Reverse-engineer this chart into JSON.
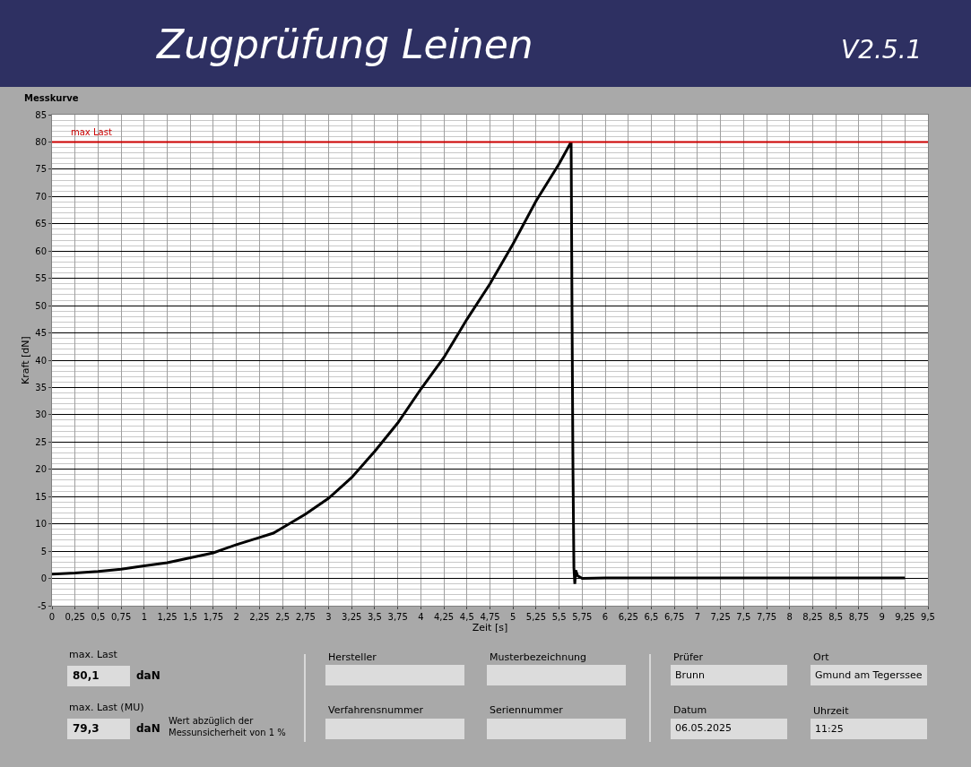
{
  "chart_data": {
    "type": "line",
    "title": "Zugprüfung Leinen",
    "subtitle": "Messkurve",
    "xlabel": "Zeit [s]",
    "ylabel": "Kraft [dN]",
    "x": [
      0,
      0.25,
      0.5,
      0.75,
      1,
      1.25,
      1.5,
      1.75,
      2,
      2.25,
      2.4,
      2.5,
      2.75,
      3,
      3.25,
      3.5,
      3.75,
      4,
      4.25,
      4.5,
      4.75,
      5,
      5.25,
      5.5,
      5.63,
      5.64,
      5.65,
      5.66,
      5.67,
      5.68,
      5.7,
      5.75,
      6,
      6.5,
      7,
      7.5,
      8,
      8.5,
      9,
      9.25
    ],
    "series": [
      {
        "color": "#000000",
        "values": [
          0.8,
          1.0,
          1.3,
          1.7,
          2.3,
          2.9,
          3.8,
          4.7,
          6.2,
          7.5,
          8.3,
          9.3,
          11.8,
          14.7,
          18.5,
          23.3,
          28.5,
          34.7,
          40.5,
          47.5,
          54,
          61.3,
          69.2,
          76,
          80,
          48,
          20,
          2,
          -1,
          1.5,
          0.5,
          0,
          0.1,
          0.1,
          0.1,
          0.1,
          0.1,
          0.1,
          0.1,
          0.1
        ]
      }
    ],
    "xlim": [
      0,
      9.5
    ],
    "xticks": [
      0,
      {
        "value": 0.25,
        "label": "0,25"
      },
      {
        "value": 0.5,
        "label": "0,5"
      },
      {
        "value": 0.75,
        "label": "0,75"
      },
      1,
      {
        "value": 1.25,
        "label": "1,25"
      },
      {
        "value": 1.5,
        "label": "1,5"
      },
      {
        "value": 1.75,
        "label": "1,75"
      },
      2,
      {
        "value": 2.25,
        "label": "2,25"
      },
      {
        "value": 2.5,
        "label": "2,5"
      },
      {
        "value": 2.75,
        "label": "2,75"
      },
      3,
      {
        "value": 3.25,
        "label": "3,25"
      },
      {
        "value": 3.5,
        "label": "3,5"
      },
      {
        "value": 3.75,
        "label": "3,75"
      },
      4,
      {
        "value": 4.25,
        "label": "4,25"
      },
      {
        "value": 4.5,
        "label": "4,5"
      },
      {
        "value": 4.75,
        "label": "4,75"
      },
      5,
      {
        "value": 5.25,
        "label": "5,25"
      },
      {
        "value": 5.5,
        "label": "5,5"
      },
      {
        "value": 5.75,
        "label": "5,75"
      },
      6,
      {
        "value": 6.25,
        "label": "6,25"
      },
      {
        "value": 6.5,
        "label": "6,5"
      },
      {
        "value": 6.75,
        "label": "6,75"
      },
      7,
      {
        "value": 7.25,
        "label": "7,25"
      },
      {
        "value": 7.5,
        "label": "7,5"
      },
      {
        "value": 7.75,
        "label": "7,75"
      },
      8,
      {
        "value": 8.25,
        "label": "8,25"
      },
      {
        "value": 8.5,
        "label": "8,5"
      },
      {
        "value": 8.75,
        "label": "8,75"
      },
      9,
      {
        "value": 9.25,
        "label": "9,25"
      },
      {
        "value": 9.5,
        "label": "9,5"
      }
    ],
    "ylim": [
      -5,
      85
    ],
    "yticks": [
      -5,
      0,
      5,
      10,
      15,
      20,
      25,
      30,
      35,
      40,
      45,
      50,
      55,
      60,
      65,
      70,
      75,
      80,
      85
    ],
    "grid": true,
    "marker": "none",
    "line_style": "solid",
    "ref_lines": [
      {
        "axis": "y",
        "value": 80,
        "label": "max Last",
        "color": "#cc0000"
      }
    ],
    "annotations": [
      "V2.5.1",
      "max. Last",
      "80,1",
      "daN",
      "max. Last (MU)",
      "79,3",
      "daN",
      "Wert abzüglich der\nMessunsicherheit von 1 %",
      "Hersteller",
      "Musterbezeichnung",
      "Verfahrensnummer",
      "Seriennummer",
      "Prüfer",
      "Brunn",
      "Ort",
      "Gmund am Tegerssee",
      "Datum",
      "06.05.2025",
      "Uhrzeit",
      "11:25"
    ]
  }
}
